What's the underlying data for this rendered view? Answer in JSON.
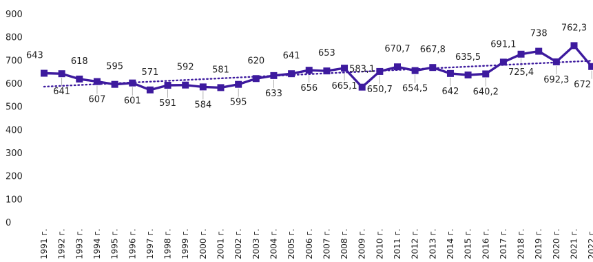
{
  "chart_data": {
    "type": "line",
    "categories": [
      "1991 г.",
      "1992 г.",
      "1993 г.",
      "1994 г.",
      "1995 г.",
      "1996 г.",
      "1997 г.",
      "1998 г.",
      "1999 г.",
      "2000 г.",
      "2001 г.",
      "2002 г.",
      "2003 г.",
      "2004 г.",
      "2005 г.",
      "2006 г.",
      "2007 г.",
      "2008 г.",
      "2009 г.",
      "2010 г.",
      "2011 г.",
      "2012 г.",
      "2013 г.",
      "2014 г.",
      "2015 г.",
      "2016 г.",
      "2017 г.",
      "2018 г.",
      "2019 г.",
      "2020 г.",
      "2021 г.",
      "2022 г."
    ],
    "series": [
      {
        "values": [
          643,
          641,
          618,
          607,
          595,
          601,
          571,
          591,
          592,
          584,
          581,
          595,
          620,
          633,
          641,
          656,
          653,
          665.1,
          583.1,
          650.7,
          670.7,
          654.5,
          667.8,
          642,
          635.5,
          640.2,
          691.1,
          725.4,
          738,
          692.3,
          762.3,
          672
        ],
        "labels": [
          "643",
          "641",
          "618",
          "607",
          "595",
          "601",
          "571",
          "591",
          "592",
          "584",
          "581",
          "595",
          "620",
          "633",
          "641",
          "656",
          "653",
          "665,1",
          "583,1",
          "650,7",
          "670,7",
          "654,5",
          "667,8",
          "642",
          "635,5",
          "640,2",
          "691,1",
          "725,4",
          "738",
          "692,3",
          "762,3",
          "672"
        ],
        "color": "#3d1a9e",
        "marker": "square"
      }
    ],
    "trendline": {
      "style": "dotted",
      "color": "#3d1a9e",
      "start": 585,
      "end": 697
    },
    "ylim": [
      0,
      900
    ],
    "yticks": [
      "0",
      "100",
      "200",
      "300",
      "400",
      "500",
      "600",
      "700",
      "800",
      "900"
    ],
    "grid": false,
    "legend": "none"
  }
}
